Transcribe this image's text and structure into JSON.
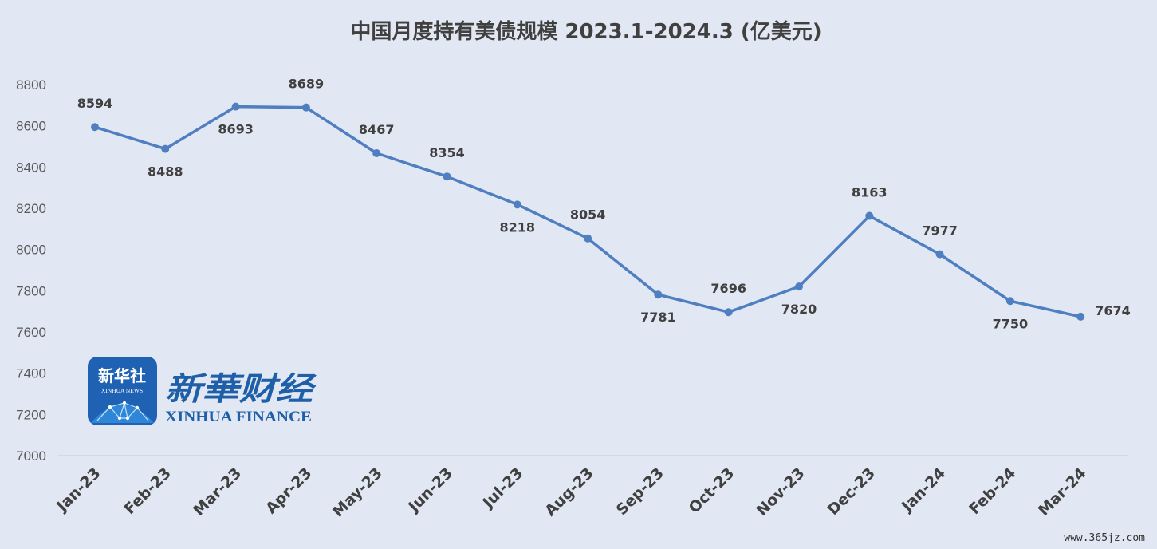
{
  "chart_data": {
    "type": "line",
    "title": "中国月度持有美债规模 2023.1-2024.3 (亿美元)",
    "categories": [
      "Jan-23",
      "Feb-23",
      "Mar-23",
      "Apr-23",
      "May-23",
      "Jun-23",
      "Jul-23",
      "Aug-23",
      "Sep-23",
      "Oct-23",
      "Nov-23",
      "Dec-23",
      "Jan-24",
      "Feb-24",
      "Mar-24"
    ],
    "values": [
      8594,
      8488,
      8693,
      8689,
      8467,
      8354,
      8218,
      8054,
      7781,
      7696,
      7820,
      8163,
      7977,
      7750,
      7674
    ],
    "ylim": [
      7000,
      8800
    ],
    "yticks": [
      "8800",
      "8600",
      "8400",
      "8200",
      "8000",
      "7800",
      "7600",
      "7400",
      "7200",
      "7000"
    ],
    "series_color": "#4f7fc1",
    "grid": "baseline only",
    "legend": "none"
  },
  "logo": {
    "box_cn": "新华社",
    "box_en": "XINHUA NEWS",
    "cn": "新華财经",
    "en": "XINHUA FINANCE",
    "color": "#1f5fa8"
  },
  "watermark": "www.365jz.com"
}
